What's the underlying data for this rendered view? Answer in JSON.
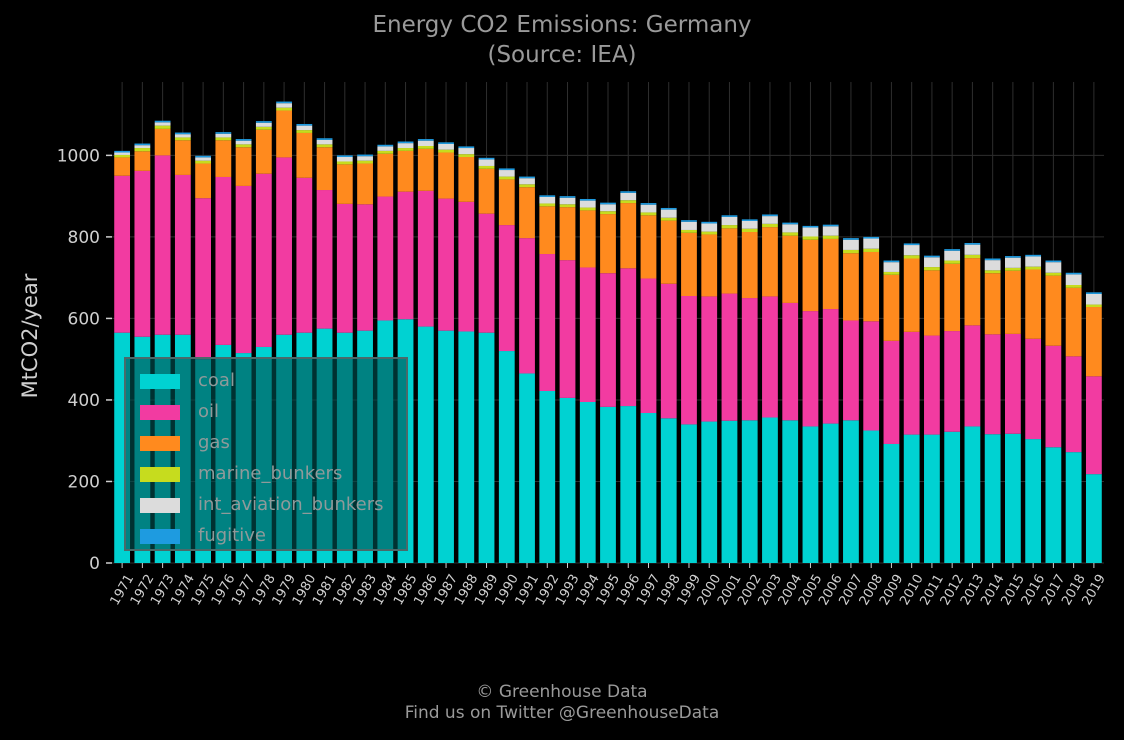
{
  "chart_data": {
    "type": "bar",
    "stacked": true,
    "title": "Energy CO2 Emissions: Germany",
    "subtitle": "(Source: IEA)",
    "ylabel": "MtCO2/year",
    "xlabel": "",
    "ylim": [
      0,
      1180
    ],
    "yticks": [
      0,
      200,
      400,
      600,
      800,
      1000
    ],
    "grid": true,
    "legend_position": "bottom-left",
    "categories": [
      "1971",
      "1972",
      "1973",
      "1974",
      "1975",
      "1976",
      "1977",
      "1978",
      "1979",
      "1980",
      "1981",
      "1982",
      "1983",
      "1984",
      "1985",
      "1986",
      "1987",
      "1988",
      "1989",
      "1990",
      "1991",
      "1992",
      "1993",
      "1994",
      "1995",
      "1996",
      "1997",
      "1998",
      "1999",
      "2000",
      "2001",
      "2002",
      "2003",
      "2004",
      "2005",
      "2006",
      "2007",
      "2008",
      "2009",
      "2010",
      "2011",
      "2012",
      "2013",
      "2014",
      "2015",
      "2016",
      "2017",
      "2018",
      "2019"
    ],
    "series": [
      {
        "name": "coal",
        "color": "#00d2d2",
        "values": [
          565,
          555,
          560,
          560,
          500,
          535,
          515,
          530,
          560,
          565,
          575,
          565,
          570,
          595,
          598,
          580,
          570,
          568,
          565,
          520,
          465,
          422,
          405,
          395,
          383,
          385,
          368,
          355,
          340,
          347,
          349,
          350,
          357,
          350,
          335,
          342,
          350,
          325,
          292,
          315,
          315,
          322,
          335,
          316,
          317,
          304,
          284,
          272,
          218
        ]
      },
      {
        "name": "oil",
        "color": "#f23ba1",
        "values": [
          385,
          407,
          440,
          392,
          395,
          412,
          410,
          425,
          435,
          380,
          340,
          316,
          310,
          304,
          313,
          333,
          324,
          318,
          292,
          309,
          332,
          336,
          338,
          330,
          328,
          338,
          330,
          330,
          315,
          307,
          312,
          300,
          297,
          288,
          283,
          281,
          245,
          268,
          253,
          252,
          243,
          247,
          248,
          245,
          245,
          246,
          249,
          235,
          240
        ]
      },
      {
        "name": "gas",
        "color": "#ff8a1e",
        "values": [
          45,
          48,
          65,
          85,
          85,
          90,
          95,
          108,
          115,
          110,
          105,
          97,
          100,
          105,
          100,
          103,
          113,
          110,
          110,
          112,
          125,
          117,
          130,
          140,
          145,
          160,
          155,
          155,
          155,
          152,
          160,
          162,
          170,
          165,
          175,
          172,
          165,
          170,
          162,
          180,
          160,
          165,
          165,
          150,
          155,
          170,
          172,
          168,
          170
        ]
      },
      {
        "name": "marine_bunkers",
        "color": "#c6dc1e",
        "values": [
          6,
          8,
          8,
          7,
          7,
          7,
          7,
          7,
          7,
          7,
          7,
          7,
          7,
          7,
          7,
          7,
          7,
          7,
          7,
          7,
          7,
          7,
          7,
          7,
          7,
          7,
          7,
          7,
          7,
          7,
          8,
          8,
          8,
          8,
          8,
          8,
          8,
          8,
          7,
          8,
          8,
          8,
          8,
          7,
          7,
          7,
          7,
          7,
          6
        ]
      },
      {
        "name": "int_aviation_bunkers",
        "color": "#dcdcdc",
        "values": [
          6,
          7,
          8,
          8,
          8,
          9,
          9,
          10,
          11,
          11,
          11,
          11,
          11,
          11,
          12,
          13,
          14,
          15,
          16,
          16,
          15,
          16,
          16,
          17,
          17,
          18,
          19,
          20,
          20,
          20,
          20,
          19,
          19,
          20,
          22,
          23,
          25,
          25,
          24,
          25,
          24,
          24,
          25,
          25,
          25,
          25,
          26,
          26,
          26
        ]
      },
      {
        "name": "fugitive",
        "color": "#1e9be0",
        "values": [
          4,
          4,
          4,
          4,
          4,
          4,
          4,
          4,
          4,
          4,
          4,
          4,
          4,
          4,
          4,
          4,
          4,
          4,
          4,
          4,
          4,
          4,
          4,
          4,
          4,
          4,
          4,
          4,
          4,
          4,
          4,
          4,
          4,
          4,
          4,
          4,
          4,
          4,
          4,
          4,
          4,
          4,
          4,
          4,
          4,
          4,
          4,
          4,
          4
        ]
      }
    ]
  },
  "footer": {
    "line1": "© Greenhouse Data",
    "line2": "Find us on Twitter @GreenhouseData"
  },
  "colors": {
    "background": "#000000",
    "grid": "#2e2e2e",
    "legend_background": "#004848",
    "text": "#9a9a9a"
  }
}
